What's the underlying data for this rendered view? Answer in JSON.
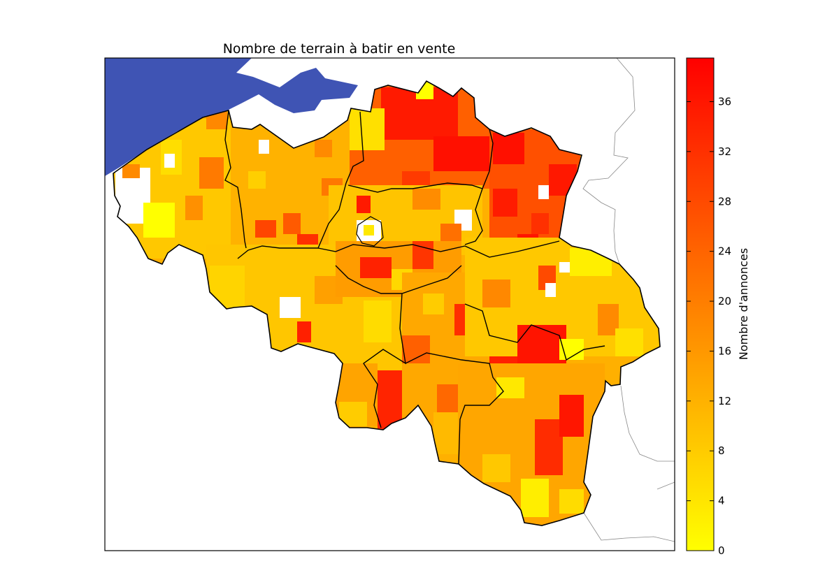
{
  "map": {
    "title": "Nombre de terrain à batir en vente",
    "sea_color": "#3f54b4",
    "border_color": "#000000",
    "neighbor_color": "#888888",
    "no_data_color": "#ffffff"
  },
  "colorbar": {
    "label": "Nombre d'annonces",
    "min": 0,
    "max": 39.5,
    "ticks": [
      0,
      4,
      8,
      12,
      16,
      20,
      24,
      28,
      32,
      36
    ],
    "colormap": "autumn_r",
    "color_low": "#ffff00",
    "color_high": "#ff0000"
  }
}
